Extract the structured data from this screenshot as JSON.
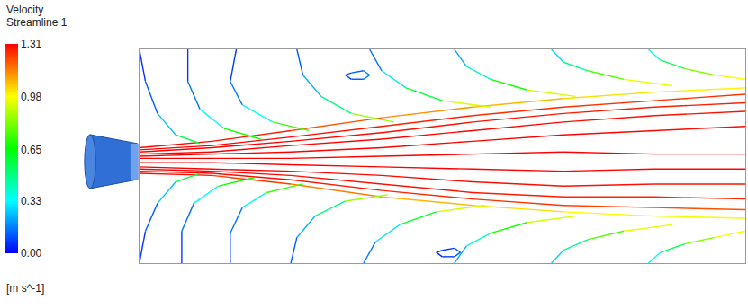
{
  "chart_data": {
    "type": "streamlines",
    "title": "Velocity",
    "subtitle": "Streamline 1",
    "colorbar": {
      "label": "[m s^-1]",
      "range": [
        0,
        1.31
      ],
      "ticks": [
        {
          "value": 0,
          "label": "0.00"
        },
        0.33,
        0.65,
        0.98,
        1.31
      ]
    },
    "xlim": [
      0,
      1
    ],
    "ylim": [
      0,
      1
    ],
    "tick_labels": false,
    "streamlines": [
      {
        "x": [
          0,
          0.12,
          0.25,
          0.4,
          0.55,
          0.7,
          0.85,
          1.0
        ],
        "y": [
          0.54,
          0.57,
          0.62,
          0.68,
          0.73,
          0.77,
          0.8,
          0.82
        ],
        "velocity": [
          1.31,
          1.3,
          1.25,
          1.15,
          1.1,
          1.05,
          1.0,
          1.0
        ]
      },
      {
        "x": [
          0,
          0.12,
          0.25,
          0.4,
          0.55,
          0.7,
          0.85,
          1.0
        ],
        "y": [
          0.53,
          0.55,
          0.59,
          0.64,
          0.69,
          0.73,
          0.76,
          0.79
        ],
        "velocity": [
          1.31,
          1.31,
          1.3,
          1.28,
          1.26,
          1.25,
          1.25,
          1.24
        ]
      },
      {
        "x": [
          0,
          0.12,
          0.25,
          0.4,
          0.55,
          0.7,
          0.85,
          1.0
        ],
        "y": [
          0.52,
          0.54,
          0.57,
          0.61,
          0.66,
          0.7,
          0.73,
          0.75
        ],
        "velocity": [
          1.31,
          1.31,
          1.31,
          1.3,
          1.29,
          1.28,
          1.27,
          1.27
        ]
      },
      {
        "x": [
          0,
          0.12,
          0.25,
          0.4,
          0.55,
          0.7,
          0.85,
          1.0
        ],
        "y": [
          0.51,
          0.52,
          0.55,
          0.58,
          0.62,
          0.66,
          0.69,
          0.71
        ],
        "velocity": [
          1.31,
          1.31,
          1.31,
          1.31,
          1.3,
          1.3,
          1.29,
          1.29
        ]
      },
      {
        "x": [
          0,
          0.12,
          0.25,
          0.4,
          0.55,
          0.7,
          0.85,
          1.0
        ],
        "y": [
          0.5,
          0.51,
          0.52,
          0.54,
          0.57,
          0.6,
          0.62,
          0.64
        ],
        "velocity": [
          1.31,
          1.31,
          1.31,
          1.31,
          1.31,
          1.31,
          1.3,
          1.3
        ]
      },
      {
        "x": [
          0,
          0.12,
          0.25,
          0.4,
          0.55,
          0.7,
          0.85,
          1.0
        ],
        "y": [
          0.49,
          0.49,
          0.49,
          0.5,
          0.51,
          0.52,
          0.51,
          0.51
        ],
        "velocity": [
          1.31,
          1.31,
          1.31,
          1.31,
          1.31,
          1.31,
          1.31,
          1.31
        ]
      },
      {
        "x": [
          0,
          0.12,
          0.25,
          0.4,
          0.55,
          0.7,
          0.85,
          1.0
        ],
        "y": [
          0.47,
          0.47,
          0.46,
          0.45,
          0.44,
          0.43,
          0.44,
          0.44
        ],
        "velocity": [
          1.31,
          1.31,
          1.31,
          1.31,
          1.31,
          1.31,
          1.3,
          1.3
        ]
      },
      {
        "x": [
          0,
          0.12,
          0.25,
          0.4,
          0.55,
          0.7,
          0.85,
          1.0
        ],
        "y": [
          0.45,
          0.44,
          0.43,
          0.41,
          0.38,
          0.36,
          0.37,
          0.37
        ],
        "velocity": [
          1.31,
          1.31,
          1.31,
          1.3,
          1.3,
          1.29,
          1.29,
          1.28
        ]
      },
      {
        "x": [
          0,
          0.12,
          0.25,
          0.4,
          0.55,
          0.7,
          0.85,
          1.0
        ],
        "y": [
          0.44,
          0.43,
          0.41,
          0.37,
          0.33,
          0.31,
          0.31,
          0.3
        ],
        "velocity": [
          1.31,
          1.31,
          1.3,
          1.29,
          1.28,
          1.27,
          1.26,
          1.26
        ]
      },
      {
        "x": [
          0,
          0.12,
          0.25,
          0.4,
          0.55,
          0.7,
          0.85,
          1.0
        ],
        "y": [
          0.43,
          0.42,
          0.39,
          0.34,
          0.3,
          0.27,
          0.26,
          0.25
        ],
        "velocity": [
          1.31,
          1.3,
          1.29,
          1.27,
          1.25,
          1.24,
          1.22,
          1.2
        ]
      },
      {
        "x": [
          0,
          0.12,
          0.25,
          0.4,
          0.55,
          0.7,
          0.85,
          1.0
        ],
        "y": [
          0.42,
          0.41,
          0.37,
          0.31,
          0.27,
          0.24,
          0.22,
          0.21
        ],
        "velocity": [
          1.31,
          1.28,
          1.2,
          1.1,
          1.05,
          1.0,
          0.98,
          0.95
        ]
      },
      {
        "x": [
          0.0,
          0.01,
          0.03,
          0.06,
          0.1
        ],
        "y": [
          1.0,
          0.85,
          0.7,
          0.6,
          0.56
        ],
        "velocity": [
          0.05,
          0.08,
          0.15,
          0.35,
          0.8
        ]
      },
      {
        "x": [
          0.08,
          0.08,
          0.1,
          0.14,
          0.2
        ],
        "y": [
          1.0,
          0.85,
          0.72,
          0.63,
          0.58
        ],
        "velocity": [
          0.05,
          0.1,
          0.2,
          0.45,
          0.9
        ]
      },
      {
        "x": [
          0.16,
          0.15,
          0.17,
          0.22,
          0.28
        ],
        "y": [
          1.0,
          0.85,
          0.74,
          0.66,
          0.62
        ],
        "velocity": [
          0.05,
          0.1,
          0.2,
          0.5,
          0.95
        ]
      },
      {
        "x": [
          0.26,
          0.27,
          0.3,
          0.35,
          0.42
        ],
        "y": [
          1.0,
          0.88,
          0.78,
          0.7,
          0.66
        ],
        "velocity": [
          0.08,
          0.15,
          0.3,
          0.7,
          1.0
        ]
      },
      {
        "x": [
          0.38,
          0.4,
          0.44,
          0.5,
          0.58
        ],
        "y": [
          1.0,
          0.9,
          0.82,
          0.76,
          0.73
        ],
        "velocity": [
          0.1,
          0.2,
          0.4,
          0.8,
          1.05
        ]
      },
      {
        "x": [
          0.52,
          0.54,
          0.58,
          0.64,
          0.72
        ],
        "y": [
          1.0,
          0.92,
          0.86,
          0.81,
          0.78
        ],
        "velocity": [
          0.15,
          0.3,
          0.5,
          0.85,
          1.0
        ]
      },
      {
        "x": [
          0.68,
          0.7,
          0.74,
          0.8,
          0.88
        ],
        "y": [
          1.0,
          0.94,
          0.9,
          0.86,
          0.83
        ],
        "velocity": [
          0.2,
          0.35,
          0.6,
          0.9,
          1.0
        ]
      },
      {
        "x": [
          0.84,
          0.86,
          0.9,
          0.95,
          1.0
        ],
        "y": [
          1.0,
          0.95,
          0.91,
          0.88,
          0.86
        ],
        "velocity": [
          0.25,
          0.4,
          0.7,
          0.95,
          1.0
        ]
      },
      {
        "x": [
          0.0,
          0.01,
          0.03,
          0.06,
          0.1
        ],
        "y": [
          0.0,
          0.15,
          0.28,
          0.38,
          0.42
        ],
        "velocity": [
          0.05,
          0.08,
          0.15,
          0.35,
          0.8
        ]
      },
      {
        "x": [
          0.07,
          0.07,
          0.09,
          0.13,
          0.19
        ],
        "y": [
          0.0,
          0.15,
          0.28,
          0.36,
          0.4
        ],
        "velocity": [
          0.05,
          0.1,
          0.2,
          0.45,
          0.9
        ]
      },
      {
        "x": [
          0.15,
          0.15,
          0.17,
          0.21,
          0.27
        ],
        "y": [
          0.0,
          0.14,
          0.26,
          0.33,
          0.37
        ],
        "velocity": [
          0.05,
          0.1,
          0.2,
          0.5,
          0.95
        ]
      },
      {
        "x": [
          0.25,
          0.26,
          0.29,
          0.34,
          0.41
        ],
        "y": [
          0.0,
          0.12,
          0.22,
          0.29,
          0.32
        ],
        "velocity": [
          0.08,
          0.15,
          0.3,
          0.7,
          1.0
        ]
      },
      {
        "x": [
          0.37,
          0.39,
          0.43,
          0.49,
          0.57
        ],
        "y": [
          0.0,
          0.1,
          0.18,
          0.24,
          0.27
        ],
        "velocity": [
          0.1,
          0.2,
          0.4,
          0.8,
          1.05
        ]
      },
      {
        "x": [
          0.52,
          0.54,
          0.58,
          0.64,
          0.72
        ],
        "y": [
          0.0,
          0.08,
          0.14,
          0.19,
          0.22
        ],
        "velocity": [
          0.15,
          0.3,
          0.5,
          0.85,
          1.0
        ]
      },
      {
        "x": [
          0.68,
          0.7,
          0.74,
          0.8,
          0.88
        ],
        "y": [
          0.0,
          0.06,
          0.11,
          0.15,
          0.18
        ],
        "velocity": [
          0.2,
          0.35,
          0.6,
          0.9,
          1.0
        ]
      },
      {
        "x": [
          0.84,
          0.86,
          0.9,
          0.95,
          1.0
        ],
        "y": [
          0.0,
          0.05,
          0.09,
          0.12,
          0.15
        ],
        "velocity": [
          0.25,
          0.4,
          0.7,
          0.95,
          1.0
        ]
      },
      {
        "x": [
          0.35,
          0.37,
          0.38,
          0.37,
          0.35,
          0.34,
          0.35
        ],
        "y": [
          0.89,
          0.9,
          0.88,
          0.86,
          0.86,
          0.88,
          0.89
        ],
        "velocity": [
          0.1,
          0.15,
          0.2,
          0.15,
          0.1,
          0.1,
          0.1
        ]
      },
      {
        "x": [
          0.5,
          0.52,
          0.53,
          0.52,
          0.5,
          0.49,
          0.5
        ],
        "y": [
          0.06,
          0.07,
          0.05,
          0.03,
          0.03,
          0.05,
          0.06
        ],
        "velocity": [
          0.05,
          0.1,
          0.15,
          0.1,
          0.05,
          0.05,
          0.05
        ]
      }
    ]
  }
}
